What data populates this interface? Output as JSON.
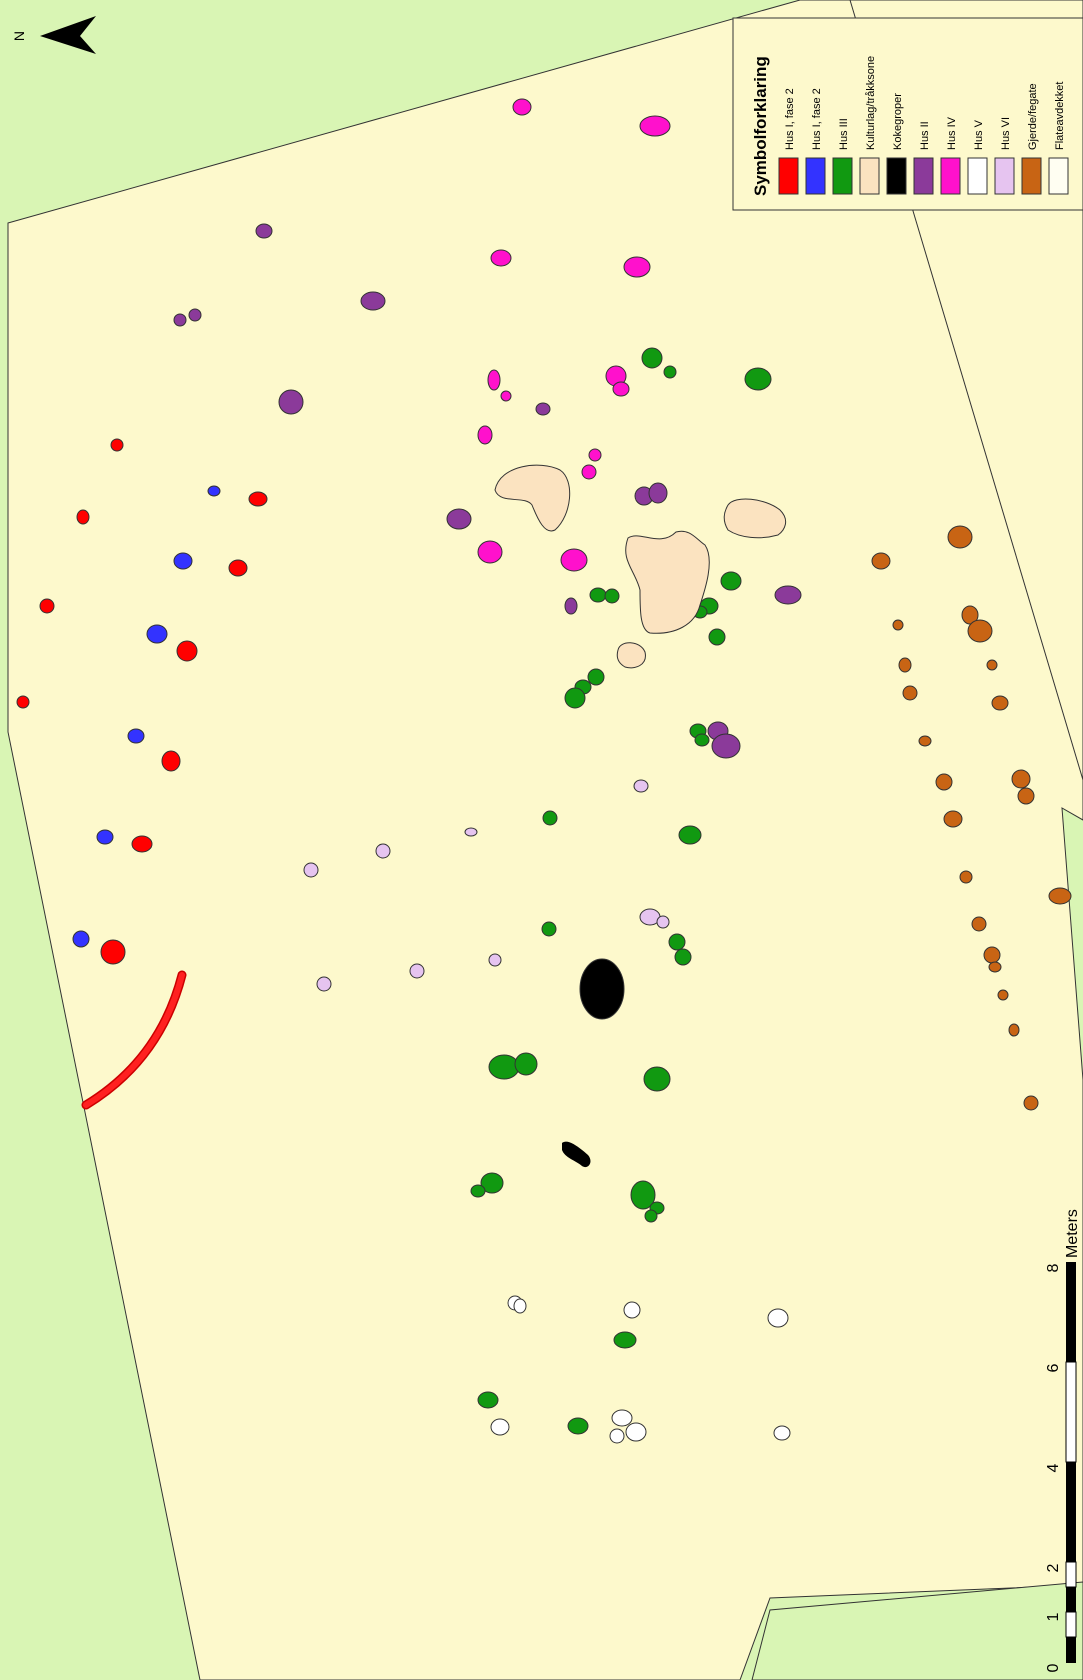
{
  "north": {
    "label": "N"
  },
  "legend": {
    "title": "Symbolforklaring",
    "items": [
      {
        "label": "Hus I, fase 2",
        "color": "#ff0000"
      },
      {
        "label": "Hus I, fase 2",
        "color": "#3333ff"
      },
      {
        "label": "Hus III",
        "color": "#119911"
      },
      {
        "label": "Kulturlag/tråkksone",
        "color": "#fbe3c0"
      },
      {
        "label": "Kokegroper",
        "color": "#000000"
      },
      {
        "label": "Hus II",
        "color": "#8b3a9a"
      },
      {
        "label": "Hus IV",
        "color": "#ff11cc"
      },
      {
        "label": "Hus V",
        "color": "#ffffff"
      },
      {
        "label": "Hus VI",
        "color": "#e6c4f0"
      },
      {
        "label": "Gjerde/fegate",
        "color": "#c86414"
      },
      {
        "label": "Flateavdekket",
        "color": "#fffef2"
      }
    ]
  },
  "scalebar": {
    "unit": "Meters",
    "ticks": [
      "0",
      "1",
      "2",
      "4",
      "6",
      "8"
    ]
  },
  "colors": {
    "background": "#d9f5b4",
    "excavated": "#fdf9cc",
    "outline": "#333333"
  }
}
